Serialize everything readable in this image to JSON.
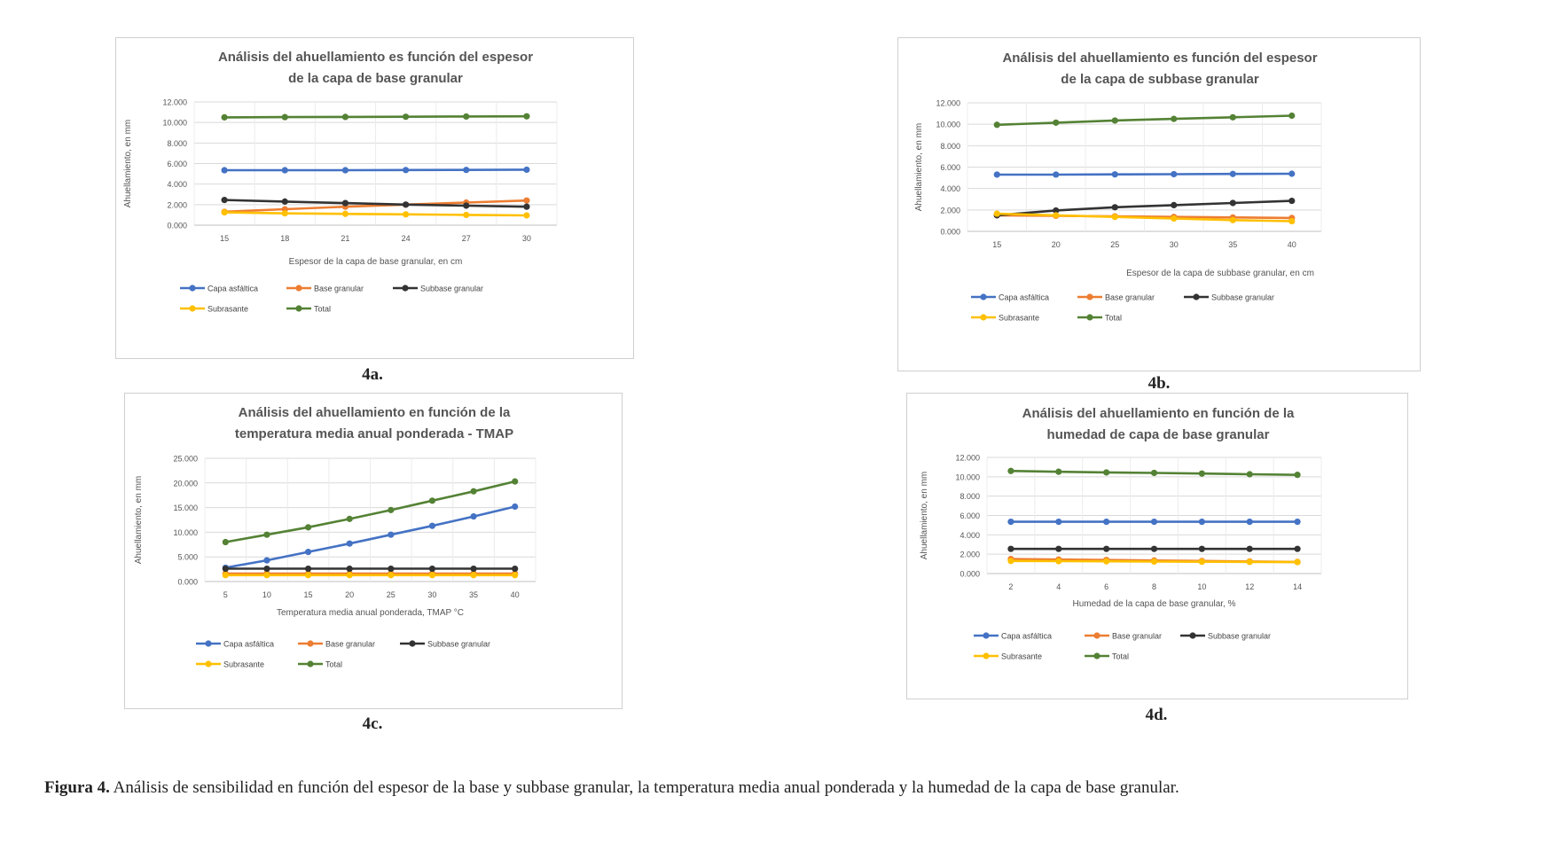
{
  "figure_caption": {
    "label": "Figura 4.",
    "text": " Análisis de sensibilidad en función del espesor de la base y subbase granular, la temperatura media anual ponderada y la humedad de la capa de base granular."
  },
  "series_colors": {
    "Capa asfáltica": "#4472c4",
    "Base granular": "#ed7d31",
    "Subbase granular": "#333333",
    "Subrasante": "#ffc000",
    "Total": "#548235"
  },
  "chart_data": [
    {
      "id": "4a",
      "tag": "4a.",
      "type": "line",
      "title_lines": [
        "Análisis del ahuellamiento es función del espesor",
        "de la capa de base granular"
      ],
      "xlabel": "Espesor de la capa de base granular, en cm",
      "ylabel": "Ahuellamiento, en mm",
      "x": [
        15,
        18,
        21,
        24,
        27,
        30
      ],
      "x_ticks": [
        "15",
        "18",
        "21",
        "24",
        "27",
        "30"
      ],
      "ylim": [
        0,
        12
      ],
      "y_ticks": [
        "0.000",
        "2.000",
        "4.000",
        "6.000",
        "8.000",
        "10.000",
        "12.000"
      ],
      "grid": true,
      "legend_position": "bottom",
      "series": [
        {
          "name": "Capa asfáltica",
          "values": [
            5.35,
            5.35,
            5.35,
            5.37,
            5.38,
            5.4
          ]
        },
        {
          "name": "Base granular",
          "values": [
            1.3,
            1.55,
            1.8,
            2.0,
            2.2,
            2.4
          ]
        },
        {
          "name": "Subbase granular",
          "values": [
            2.45,
            2.3,
            2.15,
            2.0,
            1.9,
            1.8
          ]
        },
        {
          "name": "Subrasante",
          "values": [
            1.25,
            1.15,
            1.1,
            1.05,
            1.0,
            0.95
          ]
        },
        {
          "name": "Total",
          "values": [
            10.5,
            10.52,
            10.54,
            10.56,
            10.58,
            10.6
          ]
        }
      ]
    },
    {
      "id": "4b",
      "tag": "4b.",
      "type": "line",
      "title_lines": [
        "Análisis del ahuellamiento es función del espesor",
        "de la capa de subbase granular"
      ],
      "xlabel": "Espesor de la capa de subbase granular, en cm",
      "ylabel": "Ahuellamiento, en mm",
      "x": [
        15,
        20,
        25,
        30,
        35,
        40
      ],
      "x_ticks": [
        "15",
        "20",
        "25",
        "30",
        "35",
        "40"
      ],
      "ylim": [
        0,
        12
      ],
      "y_ticks": [
        "0.000",
        "2.000",
        "4.000",
        "6.000",
        "8.000",
        "10.000",
        "12.000"
      ],
      "grid": true,
      "legend_position": "bottom",
      "series": [
        {
          "name": "Capa asfáltica",
          "values": [
            5.3,
            5.3,
            5.32,
            5.34,
            5.36,
            5.38
          ]
        },
        {
          "name": "Base granular",
          "values": [
            1.5,
            1.45,
            1.4,
            1.35,
            1.3,
            1.25
          ]
        },
        {
          "name": "Subbase granular",
          "values": [
            1.5,
            1.95,
            2.25,
            2.45,
            2.65,
            2.85
          ]
        },
        {
          "name": "Subrasante",
          "values": [
            1.65,
            1.5,
            1.35,
            1.2,
            1.05,
            0.95
          ]
        },
        {
          "name": "Total",
          "values": [
            9.95,
            10.15,
            10.35,
            10.5,
            10.65,
            10.8
          ]
        }
      ]
    },
    {
      "id": "4c",
      "tag": "4c.",
      "type": "line",
      "title_lines": [
        "Análisis del ahuellamiento en función de la",
        "temperatura media anual ponderada - TMAP"
      ],
      "xlabel": "Temperatura media anual ponderada, TMAP °C",
      "ylabel": "Ahuellamiento, en mm",
      "x": [
        5,
        10,
        15,
        20,
        25,
        30,
        35,
        40
      ],
      "x_ticks": [
        "5",
        "10",
        "15",
        "20",
        "25",
        "30",
        "35",
        "40"
      ],
      "ylim": [
        0,
        25
      ],
      "y_ticks": [
        "0.000",
        "5.000",
        "10.000",
        "15.000",
        "20.000",
        "25.000"
      ],
      "grid": true,
      "legend_position": "bottom",
      "series": [
        {
          "name": "Capa asfáltica",
          "values": [
            2.8,
            4.3,
            6.0,
            7.7,
            9.5,
            11.3,
            13.2,
            15.2
          ]
        },
        {
          "name": "Base granular",
          "values": [
            1.6,
            1.6,
            1.6,
            1.6,
            1.6,
            1.6,
            1.6,
            1.6
          ]
        },
        {
          "name": "Subbase granular",
          "values": [
            2.6,
            2.6,
            2.6,
            2.6,
            2.6,
            2.6,
            2.6,
            2.6
          ]
        },
        {
          "name": "Subrasante",
          "values": [
            1.3,
            1.3,
            1.3,
            1.3,
            1.3,
            1.3,
            1.3,
            1.3
          ]
        },
        {
          "name": "Total",
          "values": [
            8.0,
            9.5,
            11.0,
            12.7,
            14.5,
            16.4,
            18.3,
            20.3
          ]
        }
      ]
    },
    {
      "id": "4d",
      "tag": "4d.",
      "type": "line",
      "title_lines": [
        "Análisis del ahuellamiento en función de la",
        "humedad de capa de base granular"
      ],
      "xlabel": "Humedad de la capa de base granular, %",
      "ylabel": "Ahuellamiento, en mm",
      "x": [
        2,
        4,
        6,
        8,
        10,
        12,
        14
      ],
      "x_ticks": [
        "2",
        "4",
        "6",
        "8",
        "10",
        "12",
        "14"
      ],
      "ylim": [
        0,
        12
      ],
      "y_ticks": [
        "0.000",
        "2.000",
        "4.000",
        "6.000",
        "8.000",
        "10.000",
        "12.000"
      ],
      "grid": true,
      "legend_position": "bottom",
      "series": [
        {
          "name": "Capa asfáltica",
          "values": [
            5.35,
            5.35,
            5.35,
            5.35,
            5.35,
            5.35,
            5.35
          ]
        },
        {
          "name": "Base granular",
          "values": [
            1.5,
            1.45,
            1.4,
            1.35,
            1.3,
            1.25,
            1.2
          ]
        },
        {
          "name": "Subbase granular",
          "values": [
            2.55,
            2.55,
            2.55,
            2.55,
            2.55,
            2.55,
            2.55
          ]
        },
        {
          "name": "Subrasante",
          "values": [
            1.3,
            1.28,
            1.26,
            1.24,
            1.22,
            1.2,
            1.18
          ]
        },
        {
          "name": "Total",
          "values": [
            10.6,
            10.52,
            10.45,
            10.4,
            10.33,
            10.26,
            10.2
          ]
        }
      ]
    }
  ]
}
